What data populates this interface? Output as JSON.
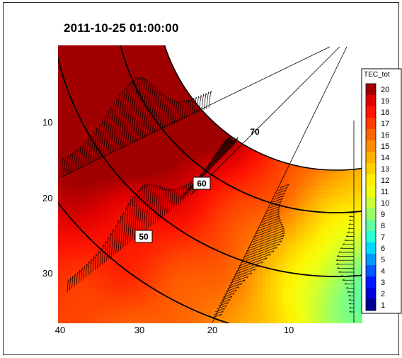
{
  "chart_data": {
    "type": "heatmap",
    "title": "2011-10-25 01:00:00",
    "xlabel": "",
    "ylabel": "",
    "x_ticks": [
      "40",
      "30",
      "20",
      "10"
    ],
    "y_ticks": [
      "10",
      "20",
      "30"
    ],
    "xlim": [
      40,
      0
    ],
    "ylim": [
      0,
      36
    ],
    "latitude_circles": [
      {
        "lat": "50",
        "labeled": true
      },
      {
        "lat": "60",
        "labeled": true
      },
      {
        "lat": "70",
        "labeled": true
      }
    ],
    "colorbar": {
      "label": "TEC_tot",
      "min": 1,
      "max": 20,
      "ticks": [
        "20",
        "19",
        "18",
        "17",
        "16",
        "15",
        "14",
        "13",
        "12",
        "11",
        "10",
        "9",
        "8",
        "7",
        "6",
        "5",
        "4",
        "3",
        "2",
        "1"
      ],
      "colors": [
        "#000096",
        "#0000d8",
        "#0018ff",
        "#0058ff",
        "#0098ff",
        "#00d8ff",
        "#28ffd6",
        "#60ffa0",
        "#98ff68",
        "#c8ff38",
        "#f0ff10",
        "#fff000",
        "#ffd000",
        "#ffb000",
        "#ff8c00",
        "#ff6400",
        "#ff3c00",
        "#ff1400",
        "#e00000",
        "#a00000"
      ]
    },
    "vector_arrows": "dense black arrows along five convection paths radiating from the pole",
    "notes": "Contour map of total electron content (TEC) in a polar projection"
  }
}
